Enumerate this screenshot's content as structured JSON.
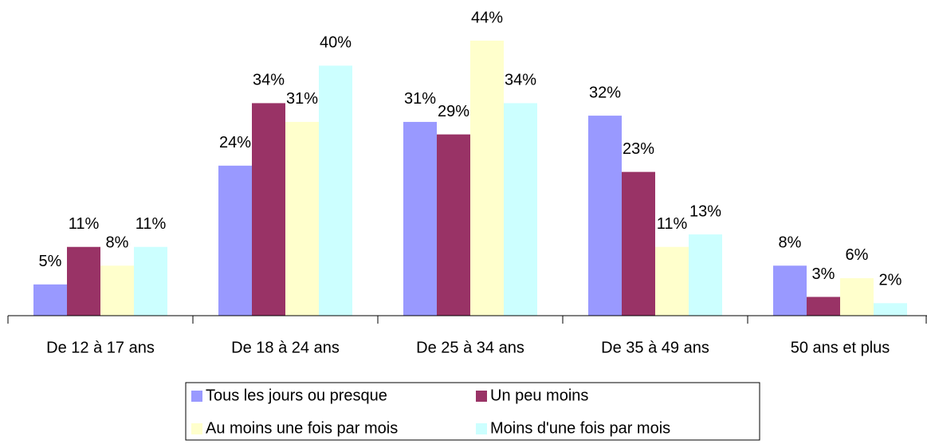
{
  "chart_data": {
    "type": "bar",
    "categories": [
      "De 12 à 17 ans",
      "De 18 à 24 ans",
      "De 25 à 34 ans",
      "De 35 à 49 ans",
      "50 ans et plus"
    ],
    "series": [
      {
        "name": "Tous les jours ou presque",
        "color": "#9999ff",
        "values": [
          5,
          24,
          31,
          32,
          8
        ],
        "value_labels": [
          "5%",
          "24%",
          "31%",
          "32%",
          "8%"
        ]
      },
      {
        "name": "Un peu moins",
        "color": "#993366",
        "values": [
          11,
          34,
          29,
          23,
          3
        ],
        "value_labels": [
          "11%",
          "34%",
          "29%",
          "23%",
          "3%"
        ]
      },
      {
        "name": "Au moins une fois par mois",
        "color": "#ffffcc",
        "values": [
          8,
          31,
          44,
          11,
          6
        ],
        "value_labels": [
          "8%",
          "31%",
          "44%",
          "11%",
          "6%"
        ]
      },
      {
        "name": "Moins d'une fois par mois",
        "color": "#ccffff",
        "values": [
          11,
          40,
          34,
          13,
          2
        ],
        "value_labels": [
          "11%",
          "40%",
          "34%",
          "13%",
          "2%"
        ]
      }
    ],
    "legend": "bottom"
  }
}
